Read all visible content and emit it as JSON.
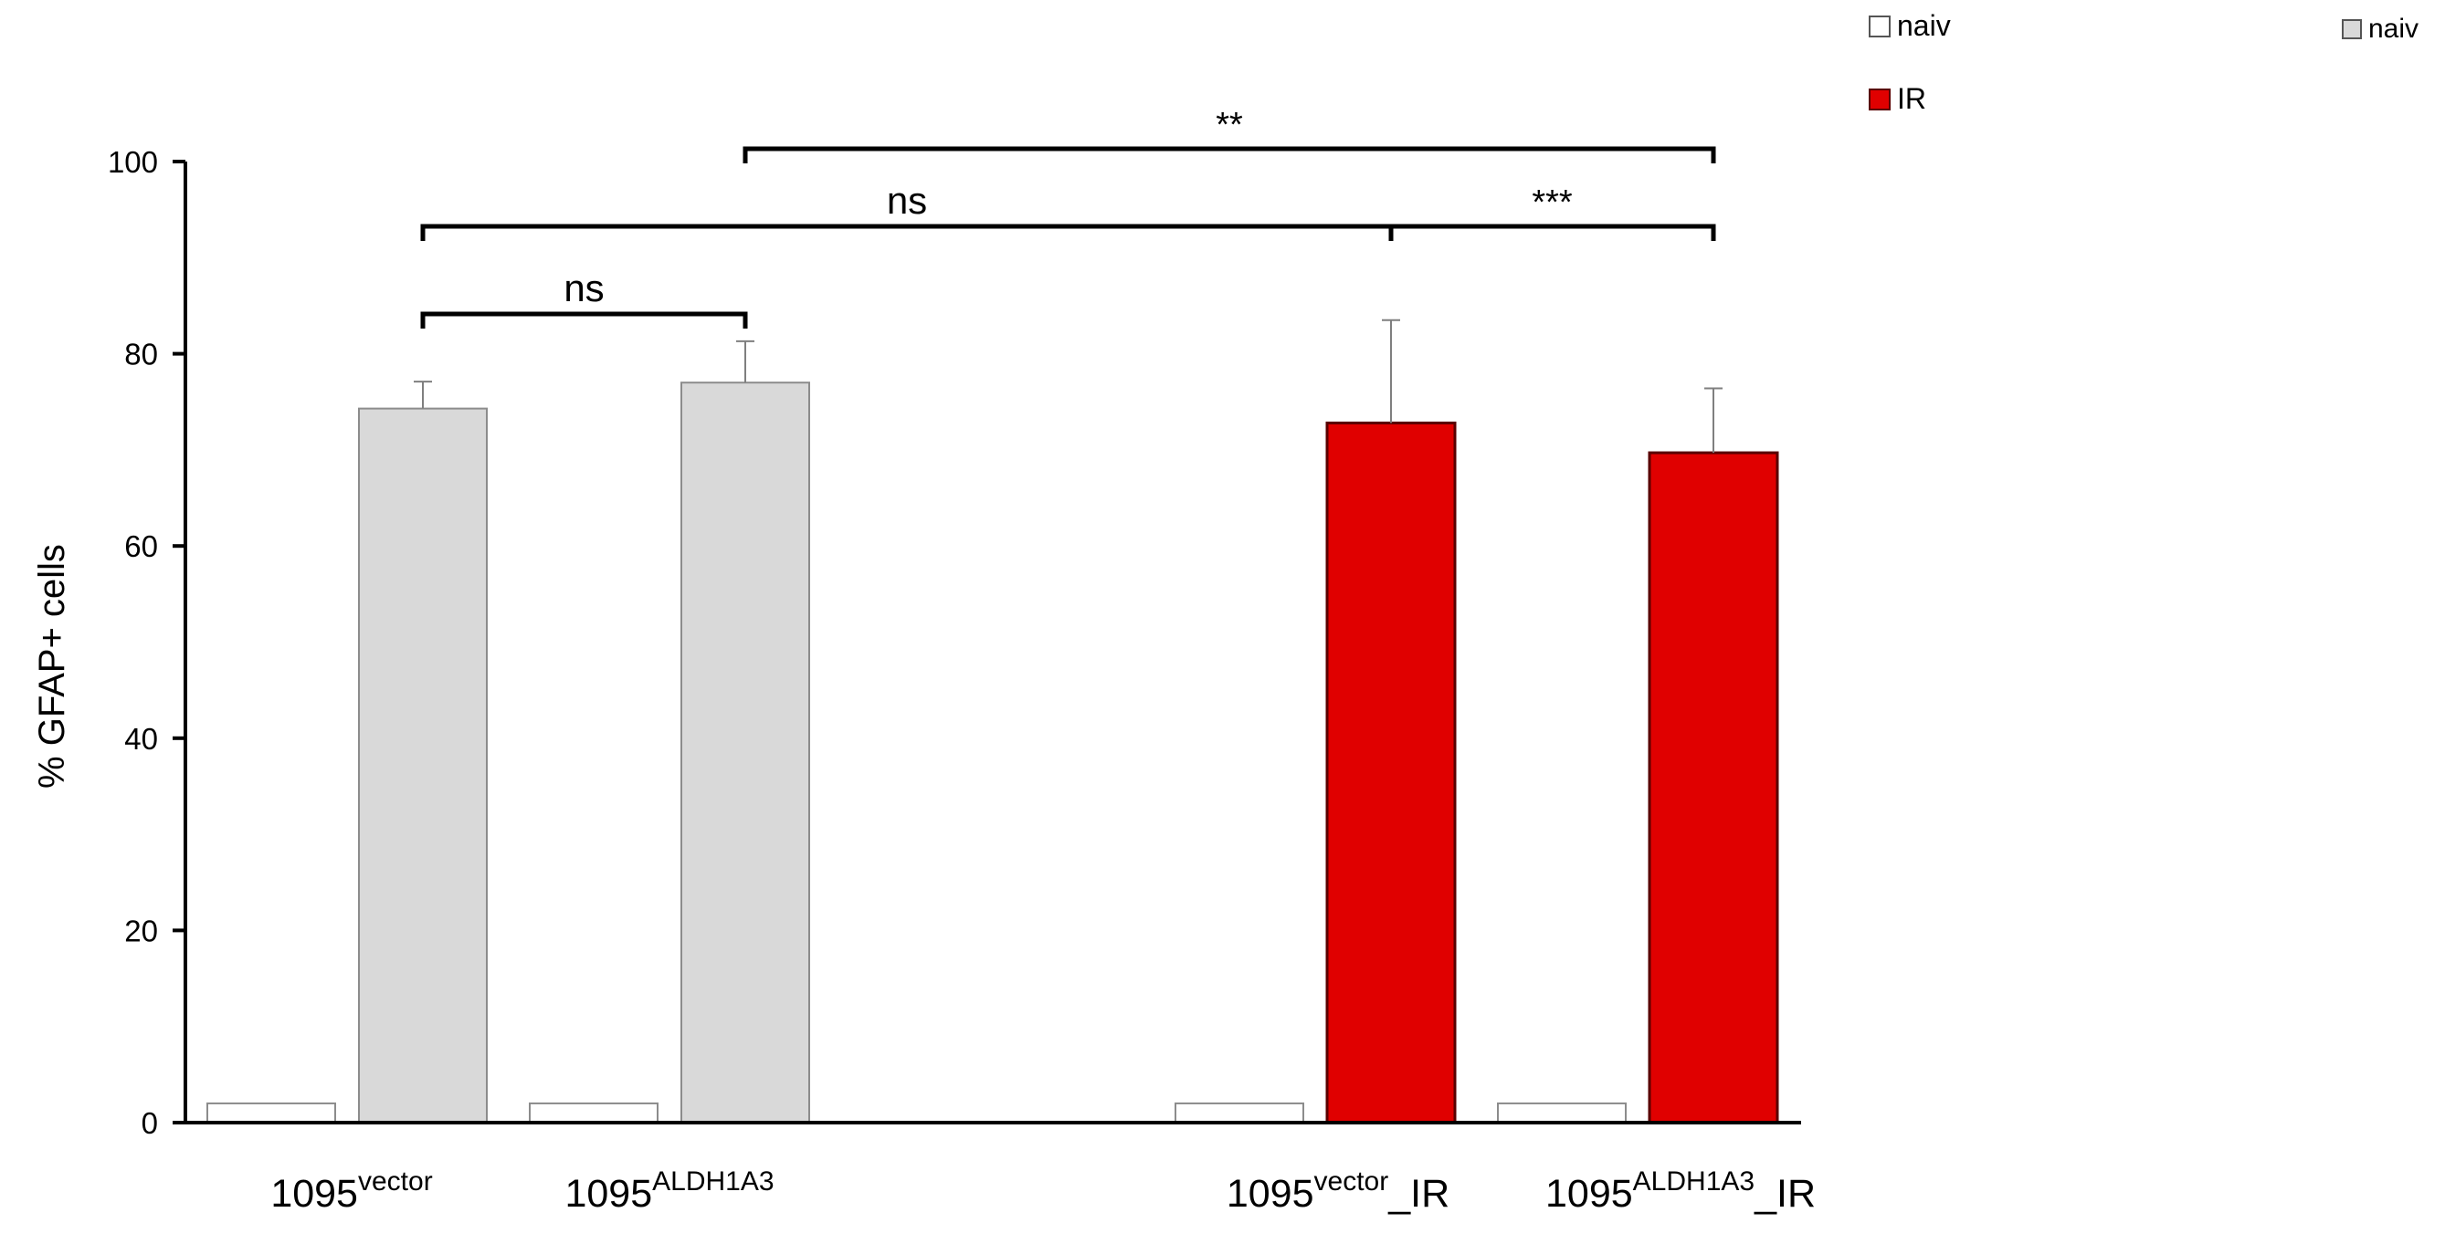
{
  "chart_data": {
    "type": "bar",
    "ylabel": "% GFAP+ cells",
    "ylim": [
      0,
      100
    ],
    "yticks": [
      0,
      20,
      40,
      60,
      80,
      100
    ],
    "categories": [
      {
        "base": "1095",
        "sup": "vector",
        "suffix": ""
      },
      {
        "base": "1095",
        "sup": "ALDH1A3",
        "suffix": ""
      },
      {
        "base": "1095",
        "sup": "vector",
        "suffix": "_IR"
      },
      {
        "base": "1095",
        "sup": "ALDH1A3",
        "suffix": "_IR"
      }
    ],
    "series": [
      {
        "name": "naiv",
        "color": "#ffffff",
        "values": [
          2,
          2,
          2,
          2
        ]
      },
      {
        "name": "naiv",
        "color": "#d9d9d9",
        "values": [
          74.3,
          77,
          null,
          null
        ],
        "errors": [
          2.8,
          4.3,
          null,
          null
        ]
      },
      {
        "name": "IR",
        "color": "#e00000",
        "values": [
          null,
          null,
          72.8,
          69.7
        ],
        "errors": [
          null,
          null,
          10.7,
          6.7
        ]
      }
    ],
    "significance": [
      {
        "from": 0,
        "to": 1,
        "label": "ns"
      },
      {
        "from": 0,
        "to": 2,
        "label": "ns"
      },
      {
        "from": 2,
        "to": 3,
        "label": "***"
      },
      {
        "from": 1,
        "to": 3,
        "label": "**"
      }
    ],
    "legend": [
      {
        "label": "naiv",
        "color": "#ffffff",
        "position": "top-right"
      },
      {
        "label": "IR",
        "color": "#e00000",
        "position": "top-right"
      },
      {
        "label": "naiv",
        "color": "#d9d9d9",
        "position": "top-right"
      }
    ],
    "grid": false
  }
}
